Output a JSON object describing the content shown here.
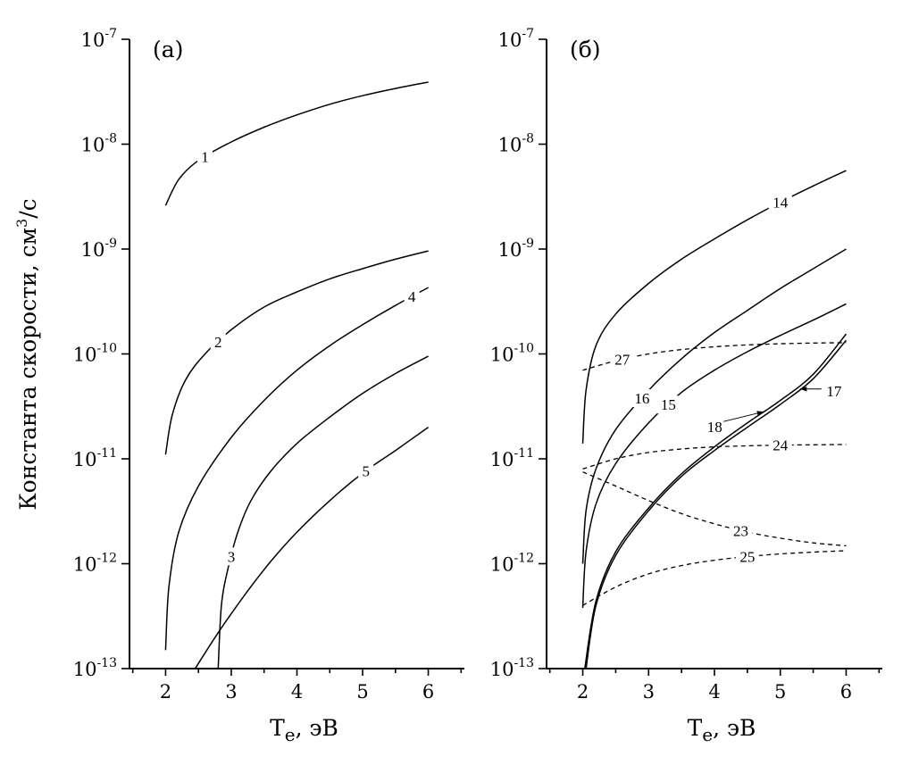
{
  "ylabel_text": "Константа скорости, см",
  "ylabel_sup": "3",
  "ylabel_tail": "/с",
  "chart_data": [
    {
      "type": "line",
      "panel_label": "(а)",
      "xlabel": "T",
      "xlabel_sub": "e",
      "xlabel_tail": ", эВ",
      "ylabel": "Константа скорости, см3/с",
      "xlim": [
        1.45,
        6.55
      ],
      "ylim": [
        1e-13,
        1e-07
      ],
      "yscale": "log",
      "x_ticks": [
        2,
        3,
        4,
        5,
        6
      ],
      "y_tick_exponents": [
        -13,
        -12,
        -11,
        -10,
        -9,
        -8,
        -7
      ],
      "y_tick_base": "10",
      "series": [
        {
          "name": "1",
          "style": "solid",
          "label_at": 2.6,
          "points": [
            [
              2.0,
              2.6e-09
            ],
            [
              2.2,
              4.6e-09
            ],
            [
              2.5,
              7e-09
            ],
            [
              3.0,
              1.05e-08
            ],
            [
              3.5,
              1.45e-08
            ],
            [
              4.0,
              1.9e-08
            ],
            [
              4.5,
              2.4e-08
            ],
            [
              5.0,
              2.9e-08
            ],
            [
              5.5,
              3.4e-08
            ],
            [
              6.0,
              3.9e-08
            ]
          ]
        },
        {
          "name": "2",
          "style": "solid",
          "label_at": 2.8,
          "points": [
            [
              2.0,
              1.1e-11
            ],
            [
              2.1,
              2.6e-11
            ],
            [
              2.3,
              5.6e-11
            ],
            [
              2.6,
              1e-10
            ],
            [
              3.0,
              1.7e-10
            ],
            [
              3.5,
              2.8e-10
            ],
            [
              4.0,
              3.9e-10
            ],
            [
              4.5,
              5.2e-10
            ],
            [
              5.0,
              6.5e-10
            ],
            [
              5.5,
              8e-10
            ],
            [
              6.0,
              9.6e-10
            ]
          ]
        },
        {
          "name": "3",
          "style": "solid",
          "label_at": 3.0,
          "points": [
            [
              2.8,
              1e-13
            ],
            [
              2.85,
              4e-13
            ],
            [
              2.95,
              9e-13
            ],
            [
              3.1,
              2e-12
            ],
            [
              3.3,
              4e-12
            ],
            [
              3.6,
              7.6e-12
            ],
            [
              4.0,
              1.4e-11
            ],
            [
              4.5,
              2.5e-11
            ],
            [
              5.0,
              4.2e-11
            ],
            [
              5.5,
              6.5e-11
            ],
            [
              6.0,
              9.5e-11
            ]
          ]
        },
        {
          "name": "4",
          "style": "solid",
          "label_at": 5.75,
          "points": [
            [
              2.0,
              1.5e-13
            ],
            [
              2.05,
              6e-13
            ],
            [
              2.2,
              2e-12
            ],
            [
              2.5,
              5.5e-12
            ],
            [
              3.0,
              1.6e-11
            ],
            [
              3.5,
              3.6e-11
            ],
            [
              4.0,
              7e-11
            ],
            [
              4.5,
              1.2e-10
            ],
            [
              5.0,
              1.9e-10
            ],
            [
              5.5,
              2.9e-10
            ],
            [
              6.0,
              4.3e-10
            ]
          ]
        },
        {
          "name": "5",
          "style": "solid",
          "label_at": 5.05,
          "points": [
            [
              2.45,
              1e-13
            ],
            [
              2.8,
              2.2e-13
            ],
            [
              3.2,
              5e-13
            ],
            [
              3.6,
              1.05e-12
            ],
            [
              4.0,
              2e-12
            ],
            [
              4.5,
              4e-12
            ],
            [
              5.0,
              7.3e-12
            ],
            [
              5.5,
              1.2e-11
            ],
            [
              6.0,
              2e-11
            ]
          ]
        }
      ]
    },
    {
      "type": "line",
      "panel_label": "(б)",
      "xlabel": "T",
      "xlabel_sub": "e",
      "xlabel_tail": ", эВ",
      "ylabel": "Константа скорости, см3/с",
      "xlim": [
        1.45,
        6.55
      ],
      "ylim": [
        1e-13,
        1e-07
      ],
      "yscale": "log",
      "x_ticks": [
        2,
        3,
        4,
        5,
        6
      ],
      "y_tick_exponents": [
        -13,
        -12,
        -11,
        -10,
        -9,
        -8,
        -7
      ],
      "y_tick_base": "10",
      "series": [
        {
          "name": "14",
          "style": "solid",
          "label_at": 5.0,
          "points": [
            [
              2.0,
              1.4e-11
            ],
            [
              2.05,
              4.5e-11
            ],
            [
              2.2,
              1.2e-10
            ],
            [
              2.5,
              2.4e-10
            ],
            [
              3.0,
              4.7e-10
            ],
            [
              3.5,
              8e-10
            ],
            [
              4.0,
              1.25e-09
            ],
            [
              4.5,
              1.9e-09
            ],
            [
              5.0,
              2.8e-09
            ],
            [
              5.5,
              4e-09
            ],
            [
              6.0,
              5.6e-09
            ]
          ]
        },
        {
          "name": "16",
          "style": "solid",
          "label_at": 2.9,
          "points": [
            [
              2.0,
              1e-12
            ],
            [
              2.05,
              3.2e-12
            ],
            [
              2.2,
              8e-12
            ],
            [
              2.5,
              1.9e-11
            ],
            [
              3.0,
              4.5e-11
            ],
            [
              3.5,
              9e-11
            ],
            [
              4.0,
              1.6e-10
            ],
            [
              4.5,
              2.6e-10
            ],
            [
              5.0,
              4.2e-10
            ],
            [
              5.5,
              6.5e-10
            ],
            [
              6.0,
              1e-09
            ]
          ]
        },
        {
          "name": "15",
          "style": "solid",
          "label_at": 3.3,
          "points": [
            [
              2.0,
              3.8e-13
            ],
            [
              2.05,
              1.3e-12
            ],
            [
              2.2,
              3.7e-12
            ],
            [
              2.5,
              9e-12
            ],
            [
              3.0,
              2.2e-11
            ],
            [
              3.5,
              4.3e-11
            ],
            [
              4.0,
              7e-11
            ],
            [
              4.5,
              1.05e-10
            ],
            [
              5.0,
              1.5e-10
            ],
            [
              5.5,
              2.1e-10
            ],
            [
              6.0,
              3e-10
            ]
          ]
        },
        {
          "name": "17",
          "style": "solid",
          "label_at": null,
          "points": [
            [
              2.05,
              1e-13
            ],
            [
              2.2,
              4e-13
            ],
            [
              2.5,
              1.2e-12
            ],
            [
              3.0,
              3.2e-12
            ],
            [
              3.5,
              6.8e-12
            ],
            [
              4.0,
              1.2e-11
            ],
            [
              4.5,
              2e-11
            ],
            [
              5.0,
              3.3e-11
            ],
            [
              5.5,
              5.8e-11
            ],
            [
              6.0,
              1.35e-10
            ]
          ]
        },
        {
          "name": "18",
          "style": "solid",
          "label_at": null,
          "points": [
            [
              2.03,
              1e-13
            ],
            [
              2.2,
              4.4e-13
            ],
            [
              2.5,
              1.3e-12
            ],
            [
              3.0,
              3.4e-12
            ],
            [
              3.5,
              7.2e-12
            ],
            [
              4.0,
              1.3e-11
            ],
            [
              4.5,
              2.2e-11
            ],
            [
              5.0,
              3.6e-11
            ],
            [
              5.5,
              6.4e-11
            ],
            [
              6.0,
              1.55e-10
            ]
          ]
        },
        {
          "name": "27",
          "style": "dashed",
          "label_at": 2.6,
          "points": [
            [
              2.0,
              7e-11
            ],
            [
              2.5,
              8.6e-11
            ],
            [
              3.0,
              1e-10
            ],
            [
              3.5,
              1.1e-10
            ],
            [
              4.0,
              1.17e-10
            ],
            [
              4.5,
              1.22e-10
            ],
            [
              5.0,
              1.25e-10
            ],
            [
              5.5,
              1.27e-10
            ],
            [
              6.0,
              1.28e-10
            ]
          ]
        },
        {
          "name": "24",
          "style": "dashed",
          "label_at": 5.0,
          "points": [
            [
              2.0,
              8e-12
            ],
            [
              2.5,
              1e-11
            ],
            [
              3.0,
              1.15e-11
            ],
            [
              3.5,
              1.24e-11
            ],
            [
              4.0,
              1.3e-11
            ],
            [
              4.5,
              1.33e-11
            ],
            [
              5.0,
              1.35e-11
            ],
            [
              5.5,
              1.36e-11
            ],
            [
              6.0,
              1.37e-11
            ]
          ]
        },
        {
          "name": "23",
          "style": "dashed",
          "label_at": 4.4,
          "points": [
            [
              2.0,
              7.5e-12
            ],
            [
              2.5,
              5.5e-12
            ],
            [
              3.0,
              4e-12
            ],
            [
              3.5,
              3e-12
            ],
            [
              4.0,
              2.4e-12
            ],
            [
              4.5,
              2e-12
            ],
            [
              5.0,
              1.75e-12
            ],
            [
              5.5,
              1.58e-12
            ],
            [
              6.0,
              1.48e-12
            ]
          ]
        },
        {
          "name": "25",
          "style": "dashed",
          "label_at": 4.5,
          "points": [
            [
              2.0,
              4e-13
            ],
            [
              2.5,
              6e-13
            ],
            [
              3.0,
              8e-13
            ],
            [
              3.5,
              9.6e-13
            ],
            [
              4.0,
              1.08e-12
            ],
            [
              4.5,
              1.17e-12
            ],
            [
              5.0,
              1.24e-12
            ],
            [
              5.5,
              1.29e-12
            ],
            [
              6.0,
              1.33e-12
            ]
          ]
        }
      ],
      "annotations": [
        {
          "text": "18",
          "arrow_to_x": 4.75,
          "arrow_to_series": "18"
        },
        {
          "text": "17",
          "arrow_to_x": 5.3,
          "arrow_to_series": "17"
        }
      ]
    }
  ]
}
